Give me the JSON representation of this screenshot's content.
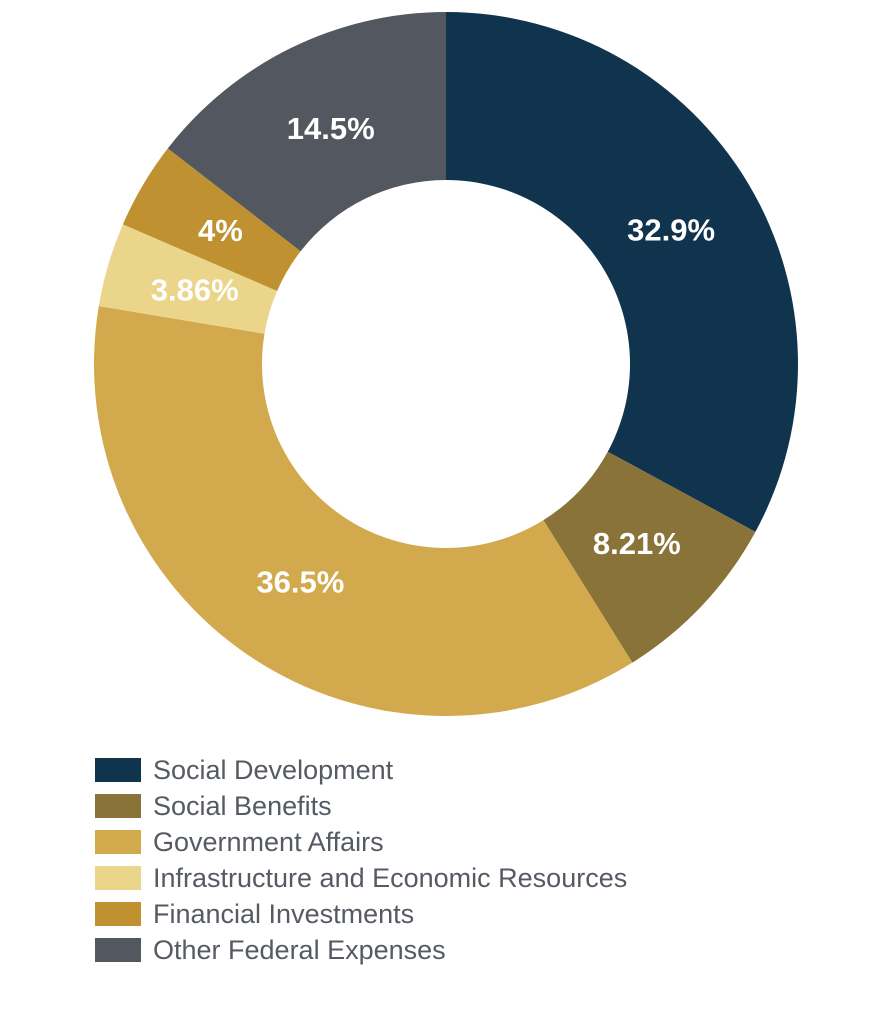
{
  "chart_data": {
    "type": "pie",
    "donut": true,
    "legend_position": "bottom-left",
    "slices": [
      {
        "label": "Social Development",
        "value": 32.9,
        "display": "32.9%",
        "color": "#11344e"
      },
      {
        "label": "Social Benefits",
        "value": 8.21,
        "display": "8.21%",
        "color": "#8a7339"
      },
      {
        "label": "Government Affairs",
        "value": 36.5,
        "display": "36.5%",
        "color": "#d2aa4d"
      },
      {
        "label": "Infrastructure and Economic Resources",
        "value": 3.86,
        "display": "3.86%",
        "color": "#ead58a"
      },
      {
        "label": "Financial Investments",
        "value": 4,
        "display": "4%",
        "color": "#bf9130"
      },
      {
        "label": "Other Federal Expenses",
        "value": 14.5,
        "display": "14.5%",
        "color": "#53575f"
      }
    ]
  }
}
